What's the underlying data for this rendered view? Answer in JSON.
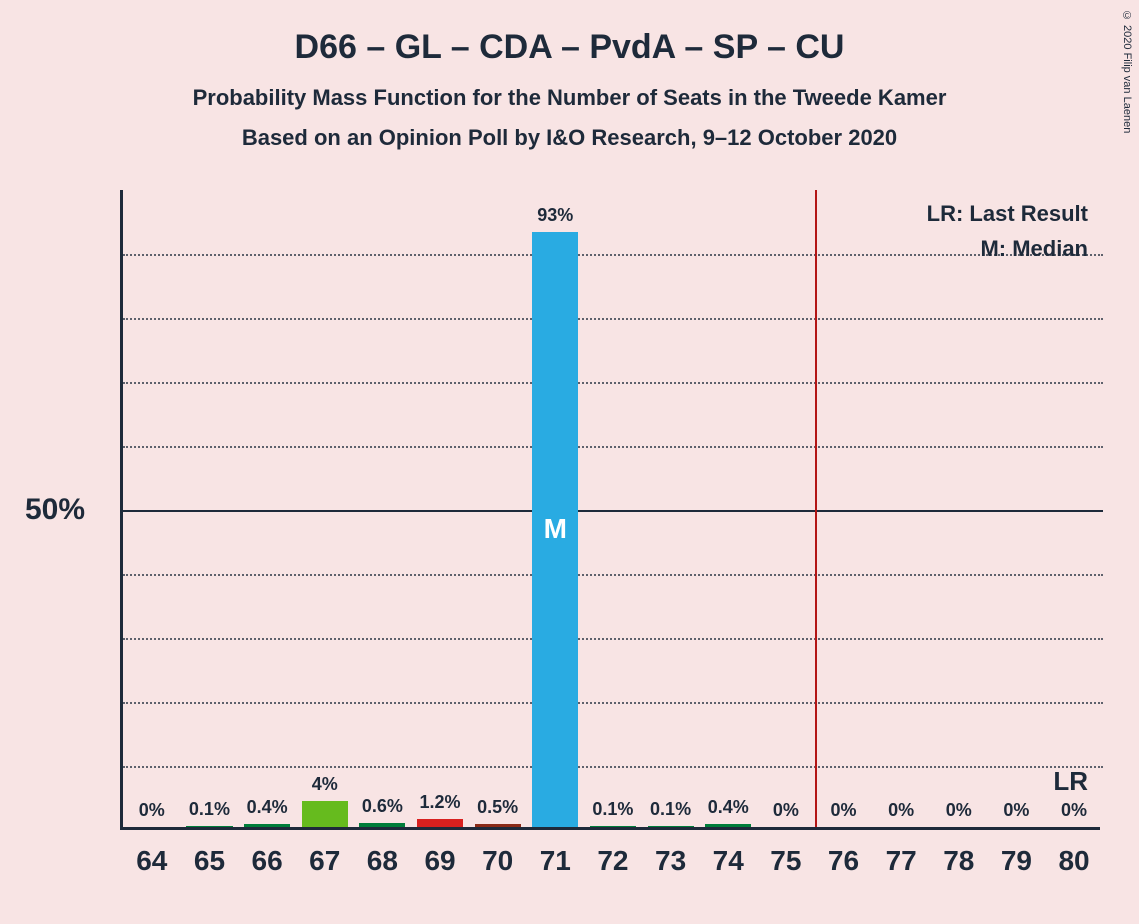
{
  "copyright": "© 2020 Filip van Laenen",
  "title": "D66 – GL – CDA – PvdA – SP – CU",
  "subtitle1": "Probability Mass Function for the Number of Seats in the Tweede Kamer",
  "subtitle2": "Based on an Opinion Poll by I&O Research, 9–12 October 2020",
  "legend": {
    "lr": "LR: Last Result",
    "m": "M: Median"
  },
  "lr_marker": "LR",
  "chart": {
    "type": "bar",
    "background_color": "#f8e4e4",
    "axis_color": "#1e2a3a",
    "grid_color": "#1e2a3a",
    "lr_line_color": "#b31515",
    "ylim": [
      0,
      100
    ],
    "y_major": 50,
    "y_minor_count": 9,
    "y_major_label": "50%",
    "categories": [
      "64",
      "65",
      "66",
      "67",
      "68",
      "69",
      "70",
      "71",
      "72",
      "73",
      "74",
      "75",
      "76",
      "77",
      "78",
      "79",
      "80"
    ],
    "values": [
      0,
      0.1,
      0.4,
      4,
      0.6,
      1.2,
      0.5,
      93,
      0.1,
      0.1,
      0.4,
      0,
      0,
      0,
      0,
      0,
      0
    ],
    "value_labels": [
      "0%",
      "0.1%",
      "0.4%",
      "4%",
      "0.6%",
      "1.2%",
      "0.5%",
      "93%",
      "0.1%",
      "0.1%",
      "0.4%",
      "0%",
      "0%",
      "0%",
      "0%",
      "0%",
      "0%"
    ],
    "bar_colors": [
      "#007d3a",
      "#007d3a",
      "#007d3a",
      "#66bb1e",
      "#007d3a",
      "#d8201f",
      "#8a2a17",
      "#29abe2",
      "#007d3a",
      "#007d3a",
      "#007d3a",
      "#007d3a",
      "#007d3a",
      "#007d3a",
      "#007d3a",
      "#007d3a",
      "#007d3a"
    ],
    "median_index": 7,
    "median_label": "M",
    "median_label_color": "#ffffff",
    "lr_line_after_index": 11,
    "title_fontsize": 34,
    "subtitle_fontsize": 22,
    "xtick_fontsize": 28,
    "value_label_fontsize": 18,
    "y_major_label_fontsize": 30
  }
}
